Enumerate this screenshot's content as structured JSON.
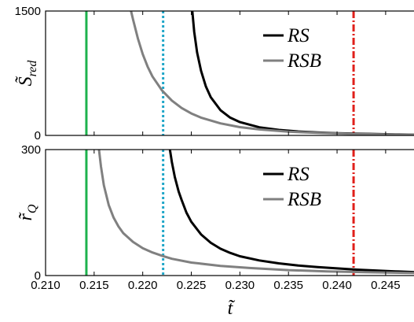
{
  "chart_data": [
    {
      "type": "line",
      "ylabel": "S̃",
      "ylabel_sub": "red",
      "xlim": [
        0.21,
        0.248
      ],
      "ylim": [
        0,
        1500
      ],
      "y_ticks": [
        "0",
        "1500"
      ],
      "legend": {
        "placement": "top-right",
        "entries": [
          "RS",
          "RSB"
        ]
      },
      "series": [
        {
          "name": "RS",
          "color": "#000000",
          "x": [
            0.2251,
            0.2253,
            0.2256,
            0.226,
            0.2265,
            0.227,
            0.228,
            0.229,
            0.23,
            0.232,
            0.234,
            0.236,
            0.238,
            0.24,
            0.242,
            0.244,
            0.246,
            0.248
          ],
          "y": [
            1500,
            1250,
            1000,
            780,
            590,
            460,
            305,
            215,
            160,
            98,
            66,
            47,
            35,
            27,
            21,
            16,
            12,
            9
          ]
        },
        {
          "name": "RSB",
          "color": "#808080",
          "x": [
            0.2188,
            0.219,
            0.2195,
            0.22,
            0.2205,
            0.221,
            0.222,
            0.223,
            0.224,
            0.225,
            0.226,
            0.228,
            0.23,
            0.232,
            0.235,
            0.238,
            0.241,
            0.244,
            0.248
          ],
          "y": [
            1500,
            1400,
            1170,
            980,
            830,
            710,
            540,
            420,
            330,
            265,
            215,
            145,
            100,
            72,
            45,
            30,
            20,
            13,
            8
          ]
        }
      ],
      "vertical_lines": [
        {
          "x": 0.2142,
          "color": "#1db24d",
          "style": "solid"
        },
        {
          "x": 0.2221,
          "color": "#1fa6c8",
          "style": "dotted"
        },
        {
          "x": 0.2417,
          "color": "#e0201b",
          "style": "dashdot"
        }
      ]
    },
    {
      "type": "line",
      "ylabel": "r̃",
      "ylabel_sub": "Q",
      "xlabel": "t̃",
      "xlim": [
        0.21,
        0.248
      ],
      "ylim": [
        0,
        300
      ],
      "y_ticks": [
        "0",
        "300"
      ],
      "x_ticks": [
        0.21,
        0.215,
        0.22,
        0.225,
        0.23,
        0.235,
        0.24,
        0.245
      ],
      "x_tick_labels": [
        "0.210",
        "0.215",
        "0.220",
        "0.225",
        "0.230",
        "0.235",
        "0.240",
        "0.245"
      ],
      "legend": {
        "placement": "top-right",
        "entries": [
          "RS",
          "RSB"
        ]
      },
      "series": [
        {
          "name": "RS",
          "color": "#000000",
          "x": [
            0.2228,
            0.223,
            0.2233,
            0.2237,
            0.224,
            0.2245,
            0.225,
            0.226,
            0.227,
            0.228,
            0.229,
            0.23,
            0.232,
            0.234,
            0.236,
            0.238,
            0.24,
            0.242,
            0.244,
            0.246,
            0.248
          ],
          "y": [
            300,
            270,
            235,
            200,
            180,
            150,
            128,
            98,
            78,
            64,
            54,
            46,
            36,
            29,
            24,
            20,
            17,
            14,
            12,
            10,
            8
          ]
        },
        {
          "name": "RSB",
          "color": "#808080",
          "x": [
            0.2155,
            0.2157,
            0.216,
            0.2165,
            0.217,
            0.2175,
            0.218,
            0.219,
            0.22,
            0.221,
            0.222,
            0.223,
            0.225,
            0.228,
            0.231,
            0.235,
            0.239,
            0.243,
            0.248
          ],
          "y": [
            300,
            260,
            215,
            168,
            138,
            117,
            101,
            80,
            65,
            55,
            47,
            40,
            31,
            23,
            18,
            13,
            10,
            8,
            6
          ]
        }
      ],
      "vertical_lines": [
        {
          "x": 0.2142,
          "color": "#1db24d",
          "style": "solid"
        },
        {
          "x": 0.2221,
          "color": "#1fa6c8",
          "style": "dotted"
        },
        {
          "x": 0.2417,
          "color": "#e0201b",
          "style": "dashdot"
        }
      ]
    }
  ]
}
